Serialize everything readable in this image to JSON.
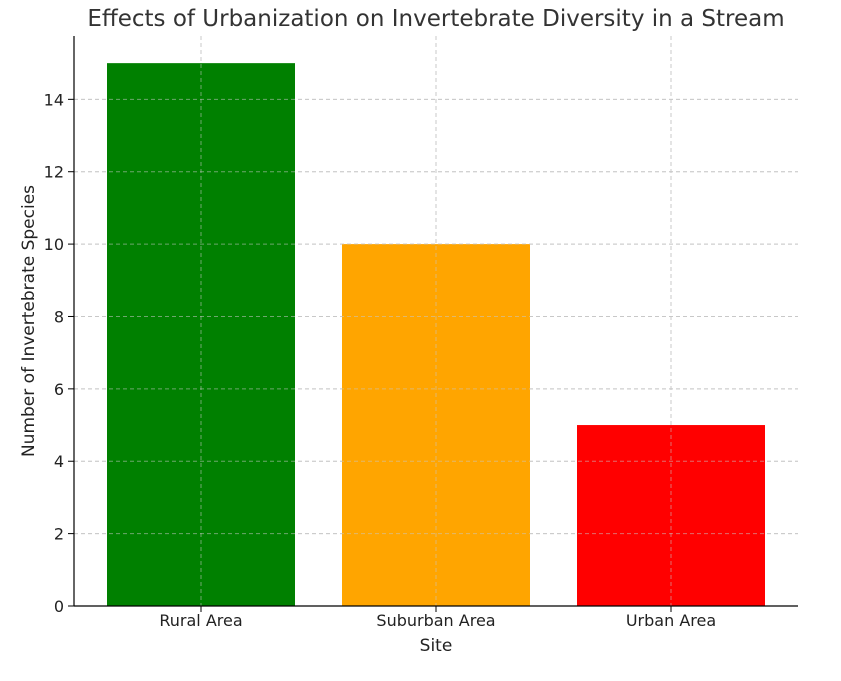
{
  "chart_data": {
    "type": "bar",
    "title": "Effects of Urbanization on Invertebrate Diversity in a Stream",
    "xlabel": "Site",
    "ylabel": "Number of Invertebrate Species",
    "categories": [
      "Rural Area",
      "Suburban Area",
      "Urban Area"
    ],
    "values": [
      15,
      10,
      5
    ],
    "colors": [
      "#008000",
      "#ffa500",
      "#ff0000"
    ],
    "ylim": [
      0,
      15.75
    ],
    "yticks": [
      0,
      2,
      4,
      6,
      8,
      10,
      12,
      14
    ],
    "grid": true,
    "legend": "none"
  }
}
